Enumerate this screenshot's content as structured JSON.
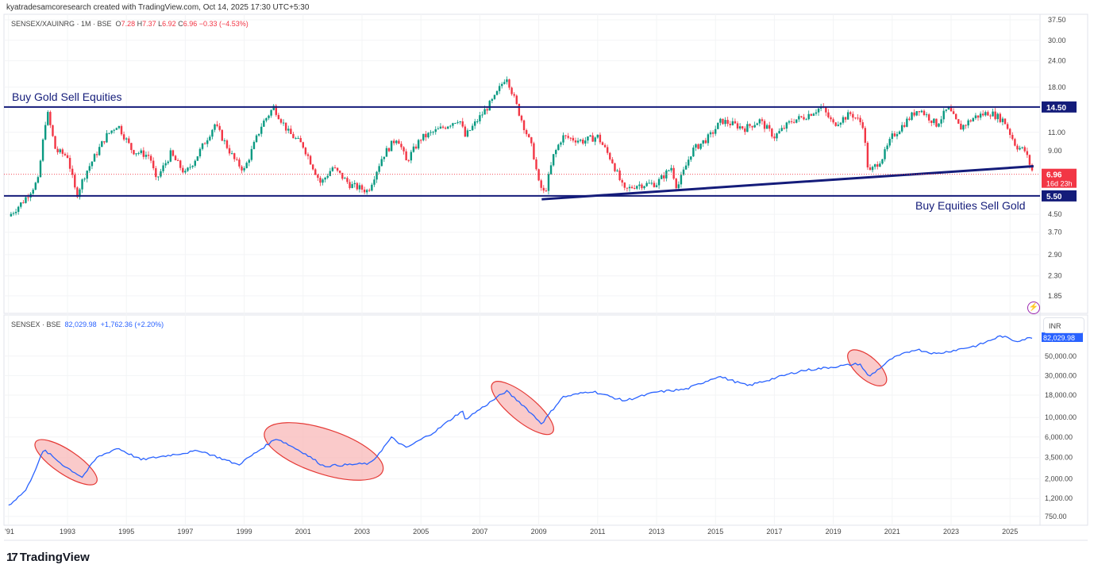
{
  "header": {
    "credit": "kyatradesamcoresearch created with TradingView.com, Oct 14, 2025 17:30 UTC+5:30"
  },
  "top_legend": {
    "symbol": "SENSEX/XAUINRG · 1M · BSE",
    "o_label": "O",
    "o": "7.28",
    "h_label": "H",
    "h": "7.37",
    "l_label": "L",
    "l": "6.92",
    "c_label": "C",
    "c": "6.96",
    "change": "−0.33 (−4.53%)"
  },
  "bottom_legend": {
    "symbol": "SENSEX · BSE",
    "value": "82,029.98",
    "change": "+1,762.36 (+2.20%)"
  },
  "annotations": {
    "top_label": "Buy Gold Sell Equities",
    "bottom_label": "Buy Equities Sell Gold"
  },
  "currency_button": "INR",
  "logo_text": "TradingView",
  "colors": {
    "up": "#089981",
    "down": "#f23645",
    "level_line": "#141c7a",
    "sensex_line": "#2962ff",
    "ellipse_fill": "#f8b4b4",
    "ellipse_stroke": "#e53935"
  },
  "chart_data": [
    {
      "type": "candlestick",
      "title": "SENSEX/XAUINRG · 1M · BSE",
      "scale": "log",
      "ylim": [
        1.85,
        37.5
      ],
      "y_ticks": [
        "37.50",
        "30.00",
        "24.00",
        "18.00",
        "11.00",
        "9.00",
        "4.50",
        "3.70",
        "2.90",
        "2.30",
        "1.85"
      ],
      "price_tags": {
        "upper_level": "14.50",
        "lower_level": "5.50",
        "last": "6.96",
        "countdown": "16d 23h"
      },
      "levels": [
        14.5,
        5.5
      ],
      "trendline": [
        [
          2009.1,
          5.3
        ],
        [
          2025.8,
          7.6
        ]
      ],
      "last_price_line": 6.96,
      "closes_approx": [
        [
          1991.0,
          4.4
        ],
        [
          1991.5,
          5.2
        ],
        [
          1992.0,
          6.5
        ],
        [
          1992.3,
          14
        ],
        [
          1992.6,
          9
        ],
        [
          1993.0,
          8.5
        ],
        [
          1993.3,
          5.5
        ],
        [
          1993.6,
          7
        ],
        [
          1994.3,
          10.5
        ],
        [
          1994.7,
          12
        ],
        [
          1995.2,
          9
        ],
        [
          1995.8,
          8.5
        ],
        [
          1996.0,
          6.5
        ],
        [
          1996.5,
          8.7
        ],
        [
          1997.0,
          7
        ],
        [
          1997.4,
          8.5
        ],
        [
          1998.0,
          12
        ],
        [
          1998.7,
          8
        ],
        [
          1999.0,
          7.3
        ],
        [
          1999.6,
          12
        ],
        [
          2000.0,
          14.5
        ],
        [
          2000.5,
          11
        ],
        [
          2001.0,
          9.5
        ],
        [
          2001.6,
          6.3
        ],
        [
          2002.0,
          7.5
        ],
        [
          2002.6,
          6.2
        ],
        [
          2003.2,
          5.8
        ],
        [
          2003.7,
          8.5
        ],
        [
          2004.2,
          10.5
        ],
        [
          2004.5,
          8
        ],
        [
          2005.0,
          10.3
        ],
        [
          2005.7,
          11.5
        ],
        [
          2006.3,
          12.8
        ],
        [
          2006.5,
          10.5
        ],
        [
          2007.0,
          13
        ],
        [
          2007.5,
          16
        ],
        [
          2007.9,
          20.5
        ],
        [
          2008.3,
          14
        ],
        [
          2008.8,
          9
        ],
        [
          2009.0,
          6.3
        ],
        [
          2009.2,
          5.6
        ],
        [
          2009.5,
          8.5
        ],
        [
          2009.8,
          10.5
        ],
        [
          2010.5,
          10
        ],
        [
          2011.0,
          10.5
        ],
        [
          2011.5,
          8
        ],
        [
          2011.9,
          5.8
        ],
        [
          2012.3,
          6.2
        ],
        [
          2013.0,
          6.3
        ],
        [
          2013.5,
          7.5
        ],
        [
          2013.7,
          6.0
        ],
        [
          2014.2,
          9
        ],
        [
          2014.8,
          10.5
        ],
        [
          2015.2,
          12.5
        ],
        [
          2016.0,
          11.5
        ],
        [
          2016.5,
          12.5
        ],
        [
          2017.0,
          10.5
        ],
        [
          2017.6,
          12.5
        ],
        [
          2018.0,
          13
        ],
        [
          2018.6,
          14.5
        ],
        [
          2019.0,
          12
        ],
        [
          2019.6,
          13.5
        ],
        [
          2020.0,
          12
        ],
        [
          2020.2,
          7
        ],
        [
          2020.7,
          8.5
        ],
        [
          2021.0,
          10.5
        ],
        [
          2021.5,
          12.5
        ],
        [
          2021.9,
          14.3
        ],
        [
          2022.5,
          12
        ],
        [
          2022.9,
          14.3
        ],
        [
          2023.3,
          11.5
        ],
        [
          2023.8,
          13
        ],
        [
          2024.3,
          13.7
        ],
        [
          2024.8,
          12.5
        ],
        [
          2025.2,
          9.5
        ],
        [
          2025.5,
          9
        ],
        [
          2025.8,
          6.96
        ]
      ]
    },
    {
      "type": "line",
      "title": "SENSEX · BSE",
      "scale": "log",
      "ylim": [
        750,
        82029.98
      ],
      "y_ticks": [
        "50,000.00",
        "30,000.00",
        "18,000.00",
        "10,000.00",
        "6,000.00",
        "3,500.00",
        "2,000.00",
        "1,200.00",
        "750.00"
      ],
      "last_tag": "82,029.98",
      "x_ticks": [
        "'91",
        "1993",
        "1995",
        "1997",
        "1999",
        "2001",
        "2003",
        "2005",
        "2007",
        "2009",
        "2011",
        "2013",
        "2015",
        "2017",
        "2019",
        "2021",
        "2023",
        "2025"
      ],
      "values_approx": [
        [
          1991.0,
          1000
        ],
        [
          1991.6,
          1500
        ],
        [
          1992.2,
          4300
        ],
        [
          1992.9,
          2800
        ],
        [
          1993.5,
          2100
        ],
        [
          1994.0,
          3500
        ],
        [
          1994.7,
          4500
        ],
        [
          1995.5,
          3300
        ],
        [
          1996.4,
          3700
        ],
        [
          1997.5,
          4200
        ],
        [
          1998.8,
          2900
        ],
        [
          2000.1,
          5800
        ],
        [
          2001.0,
          4000
        ],
        [
          2001.7,
          2800
        ],
        [
          2003.3,
          3000
        ],
        [
          2004.0,
          5900
        ],
        [
          2004.5,
          4500
        ],
        [
          2005.5,
          7000
        ],
        [
          2006.4,
          12000
        ],
        [
          2006.5,
          9500
        ],
        [
          2007.9,
          20000
        ],
        [
          2008.5,
          13500
        ],
        [
          2009.1,
          8500
        ],
        [
          2009.8,
          17000
        ],
        [
          2010.8,
          20000
        ],
        [
          2011.9,
          15500
        ],
        [
          2013.0,
          19500
        ],
        [
          2014.0,
          21000
        ],
        [
          2015.1,
          29500
        ],
        [
          2016.1,
          23000
        ],
        [
          2017.9,
          34000
        ],
        [
          2019.9,
          41000
        ],
        [
          2020.2,
          29000
        ],
        [
          2021.0,
          47000
        ],
        [
          2021.8,
          60000
        ],
        [
          2022.5,
          53000
        ],
        [
          2023.9,
          66000
        ],
        [
          2024.7,
          85000
        ],
        [
          2025.2,
          74000
        ],
        [
          2025.8,
          82029.98
        ]
      ],
      "highlight_ellipses": [
        [
          [
            1992.1,
            4800
          ],
          [
            1993.8,
            2000
          ]
        ],
        [
          [
            1999.9,
            6500
          ],
          [
            2003.5,
            2600
          ]
        ],
        [
          [
            2007.6,
            22000
          ],
          [
            2009.3,
            7500
          ]
        ],
        [
          [
            2019.7,
            50000
          ],
          [
            2020.6,
            27000
          ]
        ]
      ]
    }
  ]
}
